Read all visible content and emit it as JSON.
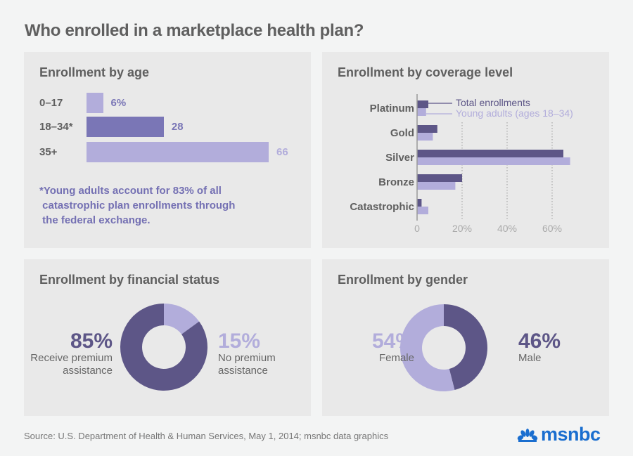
{
  "title": "Who enrolled in a marketplace health plan?",
  "source": "Source: U.S. Department of Health & Human Services, May 1, 2014; msnbc data graphics",
  "logo": {
    "text": "msnbc",
    "icon": "peacock-icon",
    "color": "#1a6ecf"
  },
  "colors": {
    "dark": "#5d5687",
    "mid": "#7a76b6",
    "light": "#b2addb",
    "grid": "#aaaaaa"
  },
  "chart_data": [
    {
      "type": "bar",
      "title": "Enrollment by age",
      "categories": [
        "0–17",
        "18–34*",
        "35+"
      ],
      "values": [
        6,
        28,
        66
      ],
      "value_labels": [
        "6%",
        "28",
        "66"
      ],
      "units": "%",
      "footnote": "*Young adults account for 83% of all\n catastrophic plan enrollments through\n the federal exchange."
    },
    {
      "type": "bar",
      "orientation": "horizontal",
      "title": "Enrollment by coverage level",
      "categories": [
        "Platinum",
        "Gold",
        "Silver",
        "Bronze",
        "Catastrophic"
      ],
      "series": [
        {
          "name": "Total enrollments",
          "values": [
            5,
            9,
            65,
            20,
            2
          ]
        },
        {
          "name": "Young adults (ages 18–34)",
          "values": [
            4,
            7,
            68,
            17,
            5
          ]
        }
      ],
      "xlim": [
        0,
        70
      ],
      "xticks": [
        "0",
        "20%",
        "40%",
        "60%"
      ],
      "xtick_values": [
        0,
        20,
        40,
        60
      ],
      "grid": true,
      "legend": "top-right"
    },
    {
      "type": "pie",
      "donut": true,
      "title": "Enrollment by financial status",
      "slices": [
        {
          "label": "No premium assistance",
          "value": 15,
          "display": "15%",
          "sub": [
            "No premium",
            "assistance"
          ]
        },
        {
          "label": "Receive premium assistance",
          "value": 85,
          "display": "85%",
          "sub": [
            "Receive premium",
            "assistance"
          ]
        }
      ]
    },
    {
      "type": "pie",
      "donut": true,
      "title": "Enrollment by gender",
      "slices": [
        {
          "label": "Male",
          "value": 46,
          "display": "46%",
          "sub": [
            "Male"
          ]
        },
        {
          "label": "Female",
          "value": 54,
          "display": "54%",
          "sub": [
            "Female"
          ]
        }
      ]
    }
  ]
}
